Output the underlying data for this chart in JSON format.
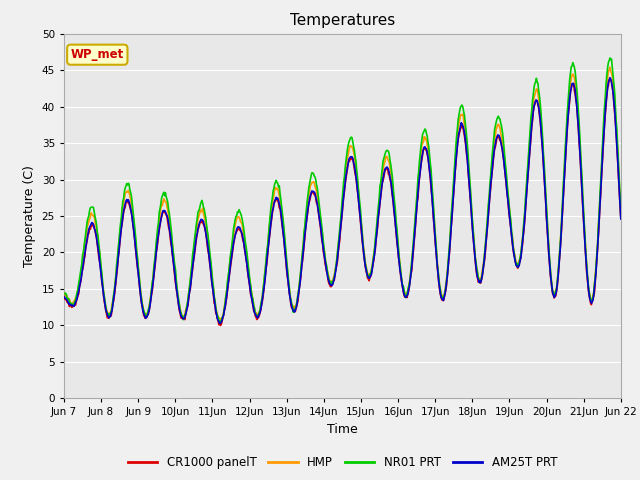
{
  "title": "Temperatures",
  "xlabel": "Time",
  "ylabel": "Temperature (C)",
  "ylim": [
    0,
    50
  ],
  "yticks": [
    0,
    5,
    10,
    15,
    20,
    25,
    30,
    35,
    40,
    45,
    50
  ],
  "n_days": 15,
  "plot_bg_color": "#e8e8e8",
  "fig_bg_color": "#f0f0f0",
  "grid_color": "#ffffff",
  "lines": [
    {
      "label": "CR1000 panelT",
      "color": "#dd0000"
    },
    {
      "label": "HMP",
      "color": "#ff9900"
    },
    {
      "label": "NR01 PRT",
      "color": "#00cc00"
    },
    {
      "label": "AM25T PRT",
      "color": "#0000cc"
    }
  ],
  "wp_met_label": "WP_met",
  "wp_met_box_color": "#ffffcc",
  "wp_met_border_color": "#ccaa00",
  "wp_met_text_color": "#cc0000",
  "peak_heights": [
    15,
    27,
    27,
    25,
    24,
    23,
    29,
    28,
    35,
    30,
    36,
    38,
    35,
    43,
    43,
    44,
    40,
    39,
    35
  ],
  "trough_heights": [
    13,
    11,
    11,
    11,
    10,
    11,
    11,
    15,
    17,
    14,
    13,
    15,
    19,
    14,
    13,
    13,
    13,
    13,
    13
  ],
  "x_tick_labels": [
    "Jun 7",
    "Jun 8",
    "Jun 9",
    "10Jun",
    "11Jun",
    "12Jun",
    "13Jun",
    "14Jun",
    "15Jun",
    "16Jun",
    "17Jun",
    "18Jun",
    "19Jun",
    "20Jun",
    "21Jun",
    "Jun 22"
  ]
}
